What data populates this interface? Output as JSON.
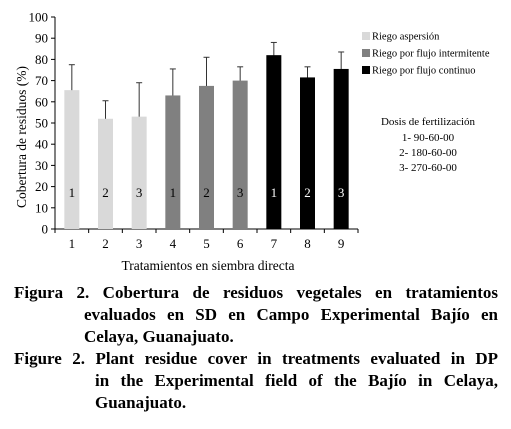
{
  "chart_data": {
    "type": "bar",
    "categories": [
      "1",
      "2",
      "3",
      "4",
      "5",
      "6",
      "7",
      "8",
      "9"
    ],
    "values": [
      65.5,
      52,
      53,
      63,
      67.5,
      70,
      82,
      71.5,
      75.5
    ],
    "error_upper": [
      77.5,
      60.5,
      69,
      75.5,
      81,
      76.5,
      88,
      76.5,
      83.5
    ],
    "error_lower": [
      53,
      43.5,
      37,
      50,
      54,
      64,
      76,
      67,
      67
    ],
    "bar_labels": [
      "1",
      "2",
      "3",
      "1",
      "2",
      "3",
      "1",
      "2",
      "3"
    ],
    "bar_groups": [
      0,
      0,
      0,
      1,
      1,
      1,
      2,
      2,
      2
    ],
    "group_colors": [
      "#d9d9d9",
      "#808080",
      "#000000"
    ],
    "group_label_colors": [
      "#000000",
      "#000000",
      "#ffffff"
    ],
    "legend": [
      {
        "name": "Riego aspersión",
        "color": "#d9d9d9"
      },
      {
        "name": "Riego por flujo intermitente",
        "color": "#808080"
      },
      {
        "name": "Riego por flujo continuo",
        "color": "#000000"
      }
    ],
    "legend_position": "right",
    "annotation": {
      "title": "Dosis de fertilización",
      "lines": [
        "1- 90-60-00",
        "2- 180-60-00",
        "3- 270-60-00"
      ]
    },
    "yticks": [
      0,
      10,
      20,
      30,
      40,
      50,
      60,
      70,
      80,
      90,
      100
    ],
    "ylim": [
      0,
      100
    ],
    "xlabel": "Tratamientos en siembra directa",
    "ylabel": "Cobertura de residuos (%)",
    "grid": false
  },
  "captions": {
    "es_line1": "Figura 2. Cobertura de residuos vegetales en tratamientos",
    "es_line2": "evaluados en SD en Campo Experimental Bajío en",
    "es_line3": "Celaya, Guanajuato.",
    "en_line1": "Figure 2. Plant residue cover in treatments evaluated in DP",
    "en_line2": "in the Experimental field of the Bajío in Celaya,",
    "en_line3": "Guanajuato."
  }
}
